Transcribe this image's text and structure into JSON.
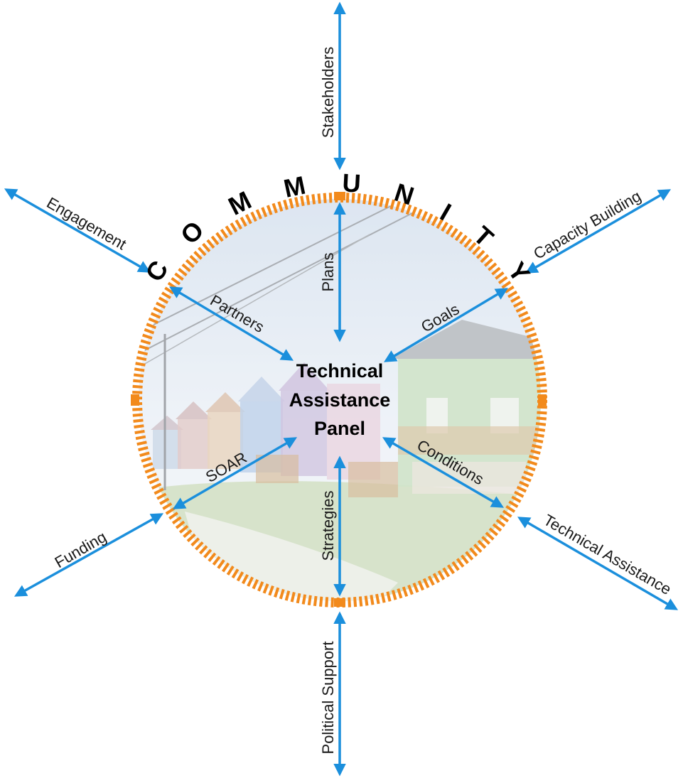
{
  "diagram": {
    "ring_word": [
      "C",
      "O",
      "M",
      "M",
      "U",
      "N",
      "I",
      "T",
      "Y"
    ],
    "center_title": [
      "Technical",
      "Assistance",
      "Panel"
    ],
    "inner_labels": {
      "plans": "Plans",
      "partners": "Partners",
      "goals": "Goals",
      "soar": "SOAR",
      "strategies": "Strategies",
      "conditions": "Conditions"
    },
    "outer_labels": {
      "stakeholders": "Stakeholders",
      "engagement": "Engagement",
      "capacity_building": "Capacity Building",
      "funding": "Funding",
      "technical_assistance": "Technical Assistance",
      "political_support": "Political Support"
    },
    "colors": {
      "arrow": "#1b8fdc",
      "ring": "#f28a1c",
      "text": "#1a1a1a"
    }
  }
}
